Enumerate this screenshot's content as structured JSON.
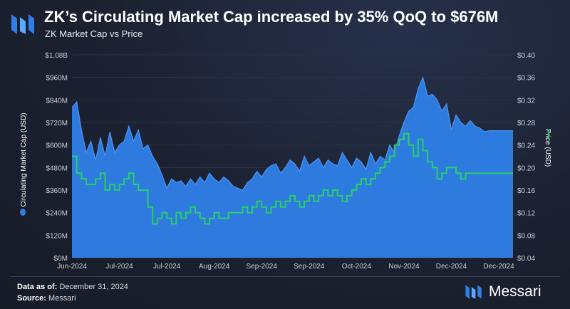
{
  "header": {
    "title": "ZK’s Circulating Market Cap increased by 35% QoQ to $676M",
    "subtitle": "ZK Market Cap vs Price"
  },
  "footer": {
    "data_as_of_label": "Data as of:",
    "data_as_of_value": "December 31, 2024",
    "source_label": "Source:",
    "source_value": "Messari",
    "brand": "Messari"
  },
  "colors": {
    "market_cap": "#2f7fe8",
    "price": "#27d06a",
    "grid": "#2e3547",
    "tick_text": "#c9cdd6"
  },
  "chart_data": {
    "type": "area",
    "title": "ZK’s Circulating Market Cap increased by 35% QoQ to $676M",
    "subtitle": "ZK Market Cap vs Price",
    "x_tick_labels": [
      "Jun-2024",
      "Jul-2024",
      "Jul-2024",
      "Aug-2024",
      "Sep-2024",
      "Sep-2024",
      "Oct-2024",
      "Nov-2024",
      "Dec-2024",
      "Dec-2024"
    ],
    "x_tick_positions": [
      0,
      20,
      40,
      60,
      80,
      100,
      120,
      140,
      160,
      180
    ],
    "y_left": {
      "label": "Circulating Market Cap (USD)",
      "ticks": [
        "$0M",
        "$120M",
        "$240M",
        "$360M",
        "$480M",
        "$600M",
        "$720M",
        "$840M",
        "$960M",
        "$1.08B"
      ],
      "range": [
        0,
        1080
      ]
    },
    "y_right": {
      "label": "Price (USD)",
      "ticks": [
        "$0.04",
        "$0.08",
        "$0.12",
        "$0.16",
        "$0.20",
        "$0.24",
        "$0.28",
        "$0.32",
        "$0.36",
        "$0.40"
      ],
      "range": [
        0.04,
        0.4
      ]
    },
    "legend": [
      {
        "name": "Circulating Market Cap (USD)",
        "placement": "left-axis"
      },
      {
        "name": "Price (USD)",
        "placement": "right-axis"
      }
    ],
    "series": [
      {
        "name": "Circulating Market Cap (USD)",
        "kind": "area",
        "axis": "left",
        "unit": "M",
        "x": [
          0,
          2,
          4,
          6,
          8,
          10,
          12,
          14,
          16,
          18,
          20,
          22,
          24,
          26,
          28,
          30,
          32,
          34,
          36,
          38,
          40,
          42,
          44,
          46,
          48,
          50,
          52,
          54,
          56,
          58,
          60,
          62,
          64,
          66,
          68,
          70,
          72,
          74,
          76,
          78,
          80,
          82,
          84,
          86,
          88,
          90,
          92,
          94,
          96,
          98,
          100,
          102,
          104,
          106,
          108,
          110,
          112,
          114,
          116,
          118,
          120,
          122,
          124,
          126,
          128,
          130,
          132,
          134,
          136,
          138,
          140,
          142,
          144,
          146,
          148,
          150,
          152,
          154,
          156,
          158,
          160,
          162,
          164,
          166,
          168,
          170,
          172,
          174,
          176,
          178,
          180,
          182,
          184,
          185,
          186
        ],
        "values": [
          800,
          830,
          680,
          560,
          620,
          520,
          640,
          540,
          670,
          560,
          600,
          620,
          700,
          620,
          680,
          580,
          600,
          540,
          500,
          440,
          370,
          420,
          400,
          410,
          380,
          420,
          390,
          430,
          400,
          450,
          420,
          400,
          430,
          410,
          380,
          370,
          360,
          400,
          420,
          460,
          430,
          470,
          490,
          500,
          450,
          480,
          520,
          500,
          460,
          540,
          490,
          510,
          530,
          480,
          520,
          500,
          490,
          560,
          520,
          480,
          530,
          510,
          470,
          560,
          500,
          540,
          520,
          600,
          560,
          650,
          720,
          780,
          800,
          900,
          960,
          860,
          870,
          840,
          780,
          820,
          680,
          760,
          720,
          700,
          730,
          700,
          690,
          670,
          676,
          676,
          676,
          676,
          676,
          676,
          676
        ]
      },
      {
        "name": "Price (USD)",
        "kind": "line",
        "axis": "right",
        "x": [
          0,
          2,
          4,
          6,
          8,
          10,
          12,
          14,
          16,
          18,
          20,
          22,
          24,
          26,
          28,
          30,
          32,
          34,
          36,
          38,
          40,
          42,
          44,
          46,
          48,
          50,
          52,
          54,
          56,
          58,
          60,
          62,
          64,
          66,
          68,
          70,
          72,
          74,
          76,
          78,
          80,
          82,
          84,
          86,
          88,
          90,
          92,
          94,
          96,
          98,
          100,
          102,
          104,
          106,
          108,
          110,
          112,
          114,
          116,
          118,
          120,
          122,
          124,
          126,
          128,
          130,
          132,
          134,
          136,
          138,
          140,
          142,
          144,
          146,
          148,
          150,
          152,
          154,
          156,
          158,
          160,
          162,
          164,
          166,
          168,
          170,
          172,
          174,
          176,
          178,
          180,
          182,
          184,
          185,
          186
        ],
        "values": [
          0.22,
          0.19,
          0.18,
          0.17,
          0.17,
          0.18,
          0.19,
          0.16,
          0.17,
          0.16,
          0.17,
          0.18,
          0.19,
          0.17,
          0.16,
          0.16,
          0.13,
          0.1,
          0.11,
          0.12,
          0.11,
          0.1,
          0.12,
          0.11,
          0.12,
          0.13,
          0.12,
          0.11,
          0.1,
          0.11,
          0.12,
          0.11,
          0.11,
          0.12,
          0.12,
          0.12,
          0.13,
          0.12,
          0.13,
          0.14,
          0.13,
          0.12,
          0.13,
          0.14,
          0.13,
          0.14,
          0.15,
          0.14,
          0.13,
          0.14,
          0.15,
          0.14,
          0.15,
          0.16,
          0.15,
          0.16,
          0.15,
          0.14,
          0.15,
          0.16,
          0.17,
          0.18,
          0.17,
          0.18,
          0.19,
          0.2,
          0.21,
          0.22,
          0.24,
          0.25,
          0.26,
          0.24,
          0.22,
          0.25,
          0.23,
          0.21,
          0.2,
          0.18,
          0.19,
          0.2,
          0.2,
          0.19,
          0.18,
          0.19,
          0.19,
          0.19,
          0.19,
          0.19,
          0.19,
          0.19,
          0.19,
          0.19,
          0.19,
          0.19,
          0.19
        ]
      }
    ]
  }
}
